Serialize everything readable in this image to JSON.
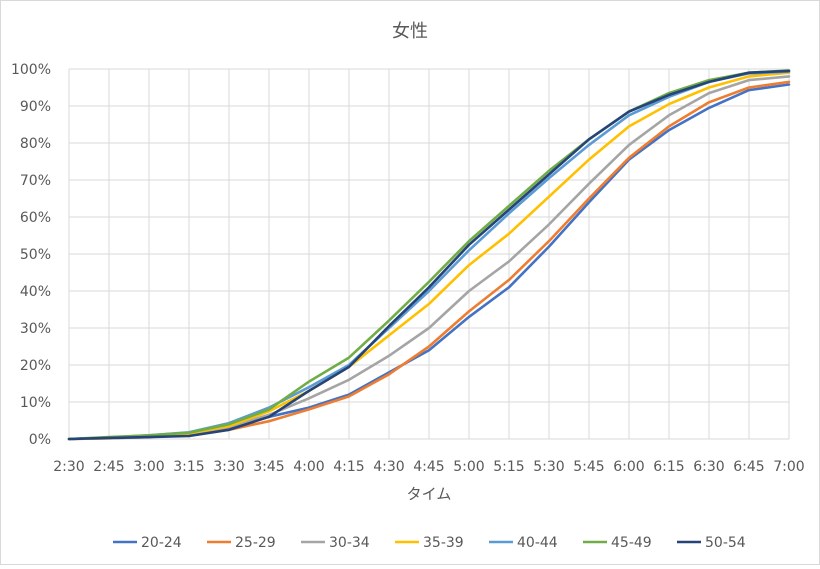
{
  "chart_data": {
    "type": "line",
    "title": "女性",
    "xlabel": "タイム",
    "ylabel": "",
    "ylim": [
      0,
      100
    ],
    "y_tick_format": "percent",
    "y_ticks": [
      "0%",
      "10%",
      "20%",
      "30%",
      "40%",
      "50%",
      "60%",
      "70%",
      "80%",
      "90%",
      "100%"
    ],
    "categories": [
      "2:30",
      "2:45",
      "3:00",
      "3:15",
      "3:30",
      "3:45",
      "4:00",
      "4:15",
      "4:30",
      "4:45",
      "5:00",
      "5:15",
      "5:30",
      "5:45",
      "6:00",
      "6:15",
      "6:30",
      "6:45",
      "7:00"
    ],
    "grid": true,
    "legend_position": "bottom",
    "series": [
      {
        "name": "20-24",
        "color": "#4472C4",
        "values": [
          0,
          0.3,
          0.7,
          1.2,
          2.8,
          6,
          8.5,
          12,
          18,
          24,
          33,
          41,
          52,
          64,
          75.5,
          83.5,
          89.5,
          94.3,
          95.8
        ]
      },
      {
        "name": "25-29",
        "color": "#ED7D31",
        "values": [
          0,
          0.2,
          0.5,
          1.5,
          2.5,
          4.8,
          8,
          11.5,
          17.5,
          25,
          34.5,
          43,
          53.5,
          65,
          76,
          84.5,
          91,
          95,
          96.5
        ]
      },
      {
        "name": "30-34",
        "color": "#A5A5A5",
        "values": [
          0,
          0.2,
          0.5,
          1.3,
          3.3,
          6.5,
          11,
          16,
          22.5,
          30,
          40,
          48,
          58,
          69,
          79.5,
          87.5,
          93.5,
          97,
          98
        ]
      },
      {
        "name": "35-39",
        "color": "#FFC000",
        "values": [
          0,
          0.3,
          0.7,
          1.5,
          3.5,
          7.5,
          13,
          19.5,
          28,
          36.5,
          47,
          55.5,
          65.5,
          75.5,
          84.5,
          90.5,
          95,
          98,
          99
        ]
      },
      {
        "name": "40-44",
        "color": "#5B9BD5",
        "values": [
          0,
          0.4,
          1,
          1.8,
          4.3,
          8.5,
          14,
          20,
          30,
          40,
          51,
          61,
          70.5,
          79.5,
          87.5,
          92.5,
          96.5,
          98.8,
          99.3
        ]
      },
      {
        "name": "45-49",
        "color": "#70AD47",
        "values": [
          0,
          0.5,
          1,
          1.7,
          4,
          8,
          15.5,
          22,
          32,
          42.5,
          53.5,
          63,
          72.5,
          81,
          88.5,
          93.5,
          97,
          99,
          99.6
        ]
      },
      {
        "name": "50-54",
        "color": "#264478",
        "values": [
          0,
          0.3,
          0.5,
          0.8,
          2.5,
          6,
          13,
          19.5,
          30.5,
          41,
          52.5,
          62,
          71.5,
          81,
          88.5,
          93,
          96.5,
          99,
          99.5
        ]
      }
    ]
  }
}
